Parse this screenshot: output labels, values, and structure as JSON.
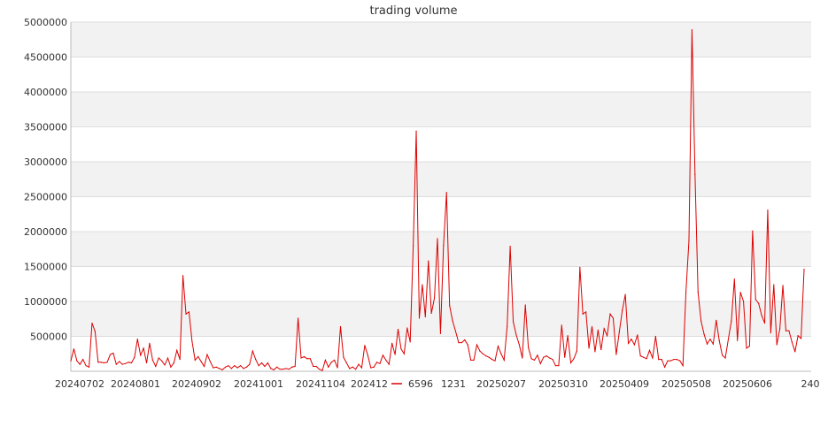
{
  "chart_data": {
    "type": "line",
    "title": "trading volume",
    "xlabel": "",
    "ylabel": "",
    "ylim": [
      0,
      5000000
    ],
    "grid": true,
    "legend_position": "bottom-center",
    "x_tick_labels": [
      "20240702",
      "20240801",
      "20240902",
      "20241001",
      "20241104",
      "202412",
      "1231",
      "20250207",
      "20250310",
      "20250409",
      "20250508",
      "20250606",
      "240"
    ],
    "y_tick_labels": [
      "500000",
      "1000000",
      "1500000",
      "2000000",
      "2500000",
      "3000000",
      "3500000",
      "4000000",
      "4500000",
      "5000000"
    ],
    "series": [
      {
        "name": "6596",
        "color": "#dd0000",
        "values": [
          150000,
          320000,
          150000,
          100000,
          170000,
          80000,
          60000,
          690000,
          570000,
          130000,
          130000,
          120000,
          130000,
          240000,
          260000,
          100000,
          140000,
          100000,
          110000,
          130000,
          120000,
          200000,
          460000,
          230000,
          330000,
          120000,
          400000,
          160000,
          70000,
          190000,
          150000,
          90000,
          190000,
          60000,
          120000,
          300000,
          170000,
          1370000,
          820000,
          850000,
          430000,
          160000,
          210000,
          140000,
          70000,
          240000,
          140000,
          50000,
          60000,
          40000,
          20000,
          60000,
          80000,
          40000,
          80000,
          50000,
          80000,
          40000,
          60000,
          100000,
          290000,
          170000,
          80000,
          120000,
          70000,
          120000,
          40000,
          20000,
          60000,
          30000,
          30000,
          40000,
          30000,
          60000,
          70000,
          760000,
          190000,
          210000,
          180000,
          180000,
          70000,
          70000,
          30000,
          10000,
          160000,
          60000,
          130000,
          160000,
          50000,
          640000,
          200000,
          120000,
          40000,
          60000,
          30000,
          100000,
          50000,
          370000,
          230000,
          50000,
          60000,
          130000,
          110000,
          230000,
          160000,
          100000,
          400000,
          240000,
          600000,
          320000,
          250000,
          620000,
          420000,
          1800000,
          3440000,
          760000,
          1240000,
          780000,
          1580000,
          830000,
          1050000,
          1900000,
          540000,
          1800000,
          2560000,
          940000,
          720000,
          570000,
          410000,
          410000,
          450000,
          380000,
          160000,
          160000,
          380000,
          290000,
          250000,
          220000,
          200000,
          170000,
          150000,
          360000,
          250000,
          160000,
          640000,
          1790000,
          710000,
          520000,
          380000,
          190000,
          950000,
          340000,
          180000,
          160000,
          230000,
          110000,
          200000,
          220000,
          190000,
          170000,
          80000,
          80000,
          660000,
          200000,
          510000,
          120000,
          180000,
          290000,
          1490000,
          820000,
          850000,
          330000,
          640000,
          280000,
          590000,
          310000,
          610000,
          510000,
          820000,
          760000,
          240000,
          560000,
          870000,
          1100000,
          400000,
          460000,
          380000,
          520000,
          220000,
          200000,
          180000,
          300000,
          190000,
          500000,
          170000,
          170000,
          60000,
          150000,
          150000,
          170000,
          170000,
          150000,
          80000,
          1130000,
          1870000,
          4890000,
          2820000,
          1130000,
          720000,
          530000,
          390000,
          460000,
          390000,
          730000,
          440000,
          230000,
          190000,
          460000,
          720000,
          1320000,
          440000,
          1130000,
          1000000,
          330000,
          360000,
          2010000,
          1030000,
          970000,
          800000,
          690000,
          2310000,
          550000,
          1240000,
          380000,
          610000,
          1230000,
          580000,
          580000,
          420000,
          280000,
          510000,
          470000,
          1460000
        ]
      }
    ]
  }
}
